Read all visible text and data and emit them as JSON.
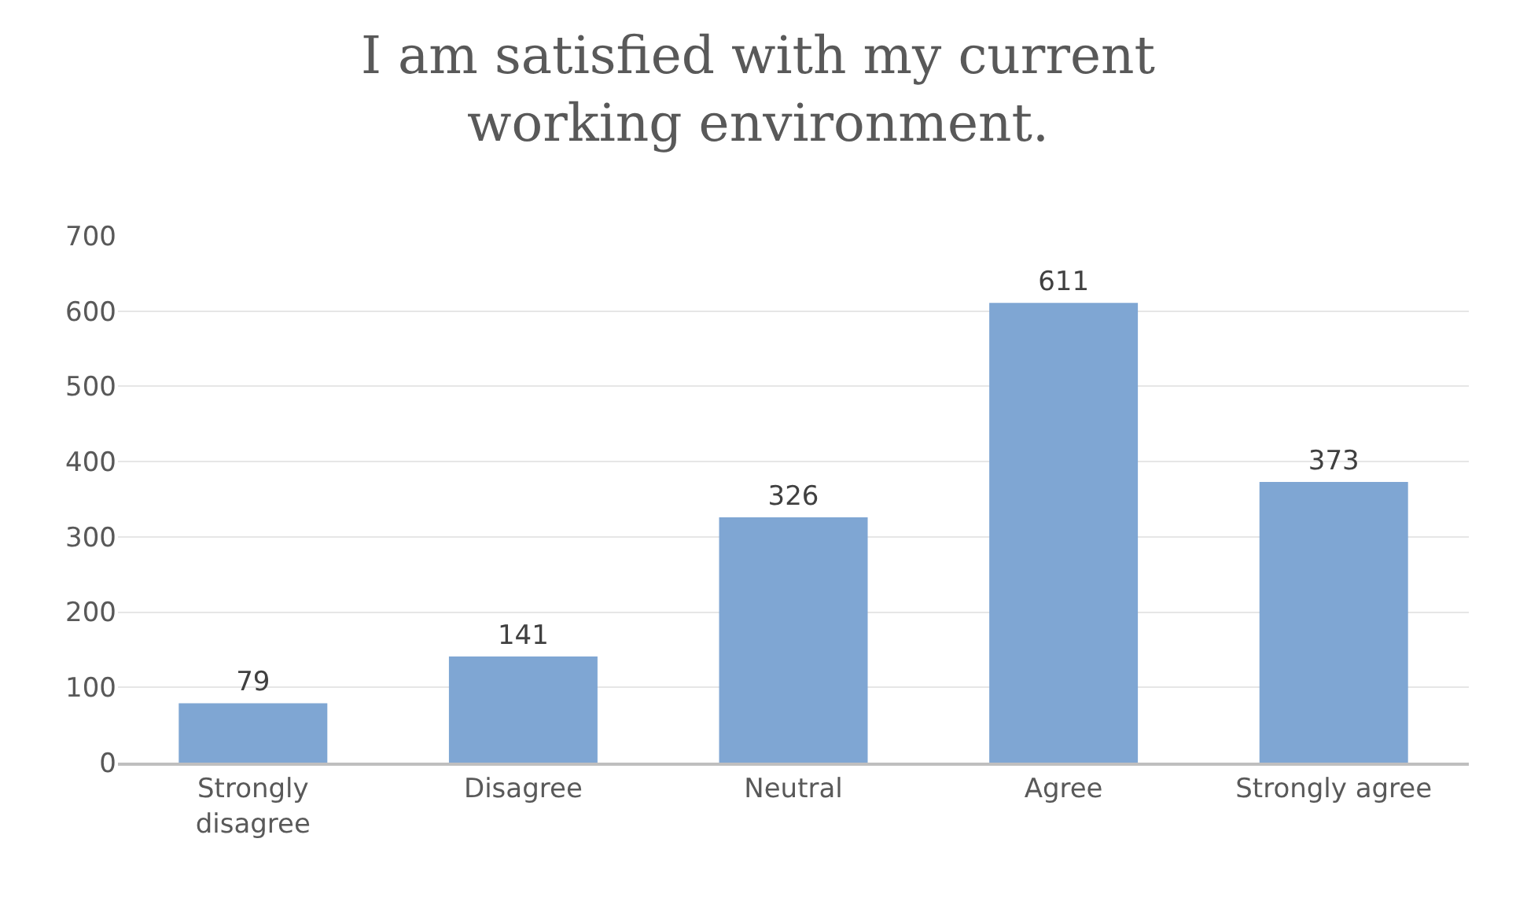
{
  "chart_data": {
    "type": "bar",
    "title": "I am satisfied with my current working environment.",
    "categories": [
      "Strongly disagree",
      "Disagree",
      "Neutral",
      "Agree",
      "Strongly agree"
    ],
    "values": [
      79,
      141,
      326,
      611,
      373
    ],
    "color": "#7fa6d3",
    "ylim": [
      0,
      700
    ],
    "yticks": [
      0,
      100,
      200,
      300,
      400,
      500,
      600,
      700
    ],
    "grid": "y",
    "data_labels": true
  }
}
